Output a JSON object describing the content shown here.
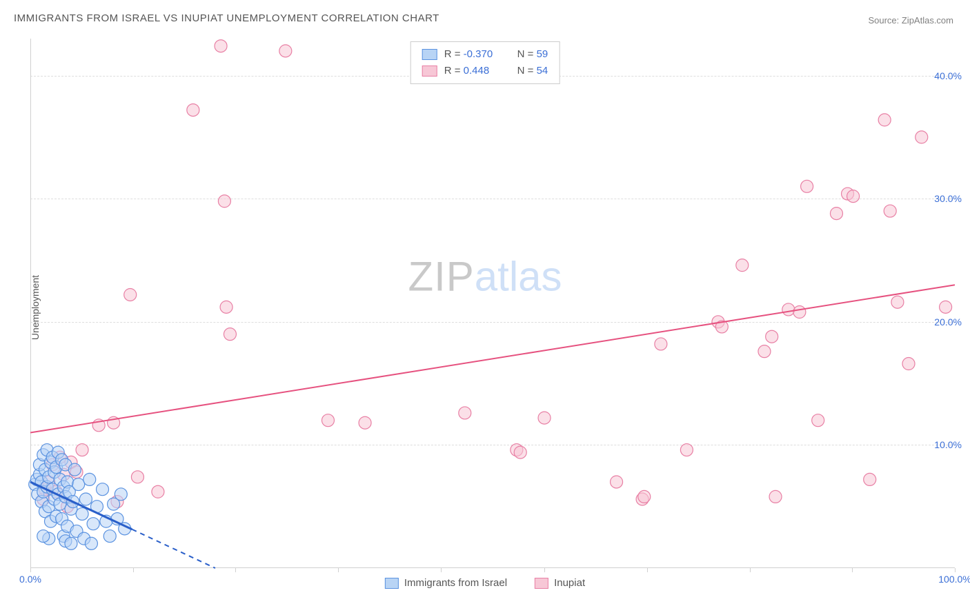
{
  "title": "IMMIGRANTS FROM ISRAEL VS INUPIAT UNEMPLOYMENT CORRELATION CHART",
  "source_label": "Source: ",
  "source_value": "ZipAtlas.com",
  "ylabel": "Unemployment",
  "watermark_a": "ZIP",
  "watermark_b": "atlas",
  "chart": {
    "type": "scatter",
    "xlim": [
      0,
      100
    ],
    "ylim": [
      0,
      43
    ],
    "yticks": [
      10,
      20,
      30,
      40
    ],
    "ytick_labels": [
      "10.0%",
      "20.0%",
      "30.0%",
      "40.0%"
    ],
    "xticks": [
      0,
      100
    ],
    "xtick_labels": [
      "0.0%",
      "100.0%"
    ],
    "xtick_marks": [
      0,
      11.1,
      22.2,
      33.3,
      44.4,
      55.6,
      66.7,
      77.8,
      88.9,
      100
    ],
    "grid_color": "#dddddd",
    "axis_color": "#d0d0d0",
    "background_color": "#ffffff",
    "title_fontsize": 15,
    "label_fontsize": 14,
    "tick_color": "#3b6fd6"
  },
  "series": {
    "israel": {
      "label": "Immigrants from Israel",
      "fill": "#b8d4f5",
      "stroke": "#5a92e0",
      "fill_opacity": 0.55,
      "marker_r": 9,
      "R_label": "R = ",
      "R": "-0.370",
      "N_label": "N = ",
      "N": "59",
      "trend": {
        "x1": 0,
        "y1": 7.0,
        "x2": 20,
        "y2": 0,
        "solid_until_x": 11,
        "color": "#2a5fc9",
        "width": 3
      },
      "points": [
        [
          0.5,
          6.8
        ],
        [
          0.7,
          7.2
        ],
        [
          0.8,
          6.0
        ],
        [
          1.0,
          7.6
        ],
        [
          1.0,
          8.4
        ],
        [
          1.2,
          5.4
        ],
        [
          1.2,
          7.0
        ],
        [
          1.4,
          9.2
        ],
        [
          1.4,
          6.2
        ],
        [
          1.6,
          4.6
        ],
        [
          1.6,
          8.0
        ],
        [
          1.8,
          6.6
        ],
        [
          1.8,
          9.6
        ],
        [
          2.0,
          5.0
        ],
        [
          2.0,
          7.4
        ],
        [
          2.2,
          8.6
        ],
        [
          2.2,
          3.8
        ],
        [
          2.4,
          6.4
        ],
        [
          2.4,
          9.0
        ],
        [
          2.6,
          5.6
        ],
        [
          2.6,
          7.8
        ],
        [
          2.8,
          4.2
        ],
        [
          2.8,
          8.2
        ],
        [
          3.0,
          6.0
        ],
        [
          3.0,
          9.4
        ],
        [
          3.2,
          5.2
        ],
        [
          3.2,
          7.2
        ],
        [
          3.4,
          8.8
        ],
        [
          3.4,
          4.0
        ],
        [
          3.6,
          6.6
        ],
        [
          3.6,
          2.6
        ],
        [
          3.8,
          5.8
        ],
        [
          3.8,
          8.4
        ],
        [
          4.0,
          3.4
        ],
        [
          4.0,
          7.0
        ],
        [
          4.2,
          6.2
        ],
        [
          4.4,
          4.8
        ],
        [
          4.6,
          5.4
        ],
        [
          4.8,
          8.0
        ],
        [
          5.0,
          3.0
        ],
        [
          5.2,
          6.8
        ],
        [
          5.6,
          4.4
        ],
        [
          6.0,
          5.6
        ],
        [
          6.4,
          7.2
        ],
        [
          6.8,
          3.6
        ],
        [
          7.2,
          5.0
        ],
        [
          7.8,
          6.4
        ],
        [
          8.2,
          3.8
        ],
        [
          8.6,
          2.6
        ],
        [
          9.0,
          5.2
        ],
        [
          9.4,
          4.0
        ],
        [
          9.8,
          6.0
        ],
        [
          10.2,
          3.2
        ],
        [
          3.8,
          2.2
        ],
        [
          4.4,
          2.0
        ],
        [
          5.8,
          2.4
        ],
        [
          6.6,
          2.0
        ],
        [
          2.0,
          2.4
        ],
        [
          1.4,
          2.6
        ]
      ]
    },
    "inupiat": {
      "label": "Inupiat",
      "fill": "#f7c7d6",
      "stroke": "#e87fa4",
      "fill_opacity": 0.55,
      "marker_r": 9,
      "R_label": "R = ",
      "R": "0.448",
      "N_label": "N = ",
      "N": "54",
      "trend": {
        "x1": 0,
        "y1": 11.0,
        "x2": 100,
        "y2": 23.0,
        "color": "#e6517f",
        "width": 2
      },
      "points": [
        [
          1.4,
          5.6
        ],
        [
          1.6,
          6.4
        ],
        [
          2.0,
          7.0
        ],
        [
          2.4,
          8.4
        ],
        [
          2.8,
          6.2
        ],
        [
          3.2,
          9.0
        ],
        [
          3.6,
          7.6
        ],
        [
          4.0,
          5.0
        ],
        [
          4.4,
          8.6
        ],
        [
          5.0,
          7.8
        ],
        [
          5.6,
          9.6
        ],
        [
          7.4,
          11.6
        ],
        [
          9.0,
          11.8
        ],
        [
          9.4,
          5.4
        ],
        [
          10.8,
          22.2
        ],
        [
          11.6,
          7.4
        ],
        [
          13.8,
          6.2
        ],
        [
          17.6,
          37.2
        ],
        [
          20.6,
          42.4
        ],
        [
          21.0,
          29.8
        ],
        [
          21.2,
          21.2
        ],
        [
          21.6,
          19.0
        ],
        [
          27.6,
          42.0
        ],
        [
          32.2,
          12.0
        ],
        [
          36.2,
          11.8
        ],
        [
          47.0,
          12.6
        ],
        [
          52.6,
          9.6
        ],
        [
          53.0,
          9.4
        ],
        [
          55.6,
          12.2
        ],
        [
          63.4,
          7.0
        ],
        [
          66.2,
          5.6
        ],
        [
          66.4,
          5.8
        ],
        [
          68.2,
          18.2
        ],
        [
          71.0,
          9.6
        ],
        [
          74.4,
          20.0
        ],
        [
          74.8,
          19.6
        ],
        [
          77.0,
          24.6
        ],
        [
          79.4,
          17.6
        ],
        [
          80.2,
          18.8
        ],
        [
          80.6,
          5.8
        ],
        [
          82.0,
          21.0
        ],
        [
          83.2,
          20.8
        ],
        [
          84.0,
          31.0
        ],
        [
          85.2,
          12.0
        ],
        [
          87.2,
          28.8
        ],
        [
          88.4,
          30.4
        ],
        [
          89.0,
          30.2
        ],
        [
          90.8,
          7.2
        ],
        [
          92.4,
          36.4
        ],
        [
          93.0,
          29.0
        ],
        [
          93.8,
          21.6
        ],
        [
          95.0,
          16.6
        ],
        [
          96.4,
          35.0
        ],
        [
          99.0,
          21.2
        ]
      ]
    }
  }
}
